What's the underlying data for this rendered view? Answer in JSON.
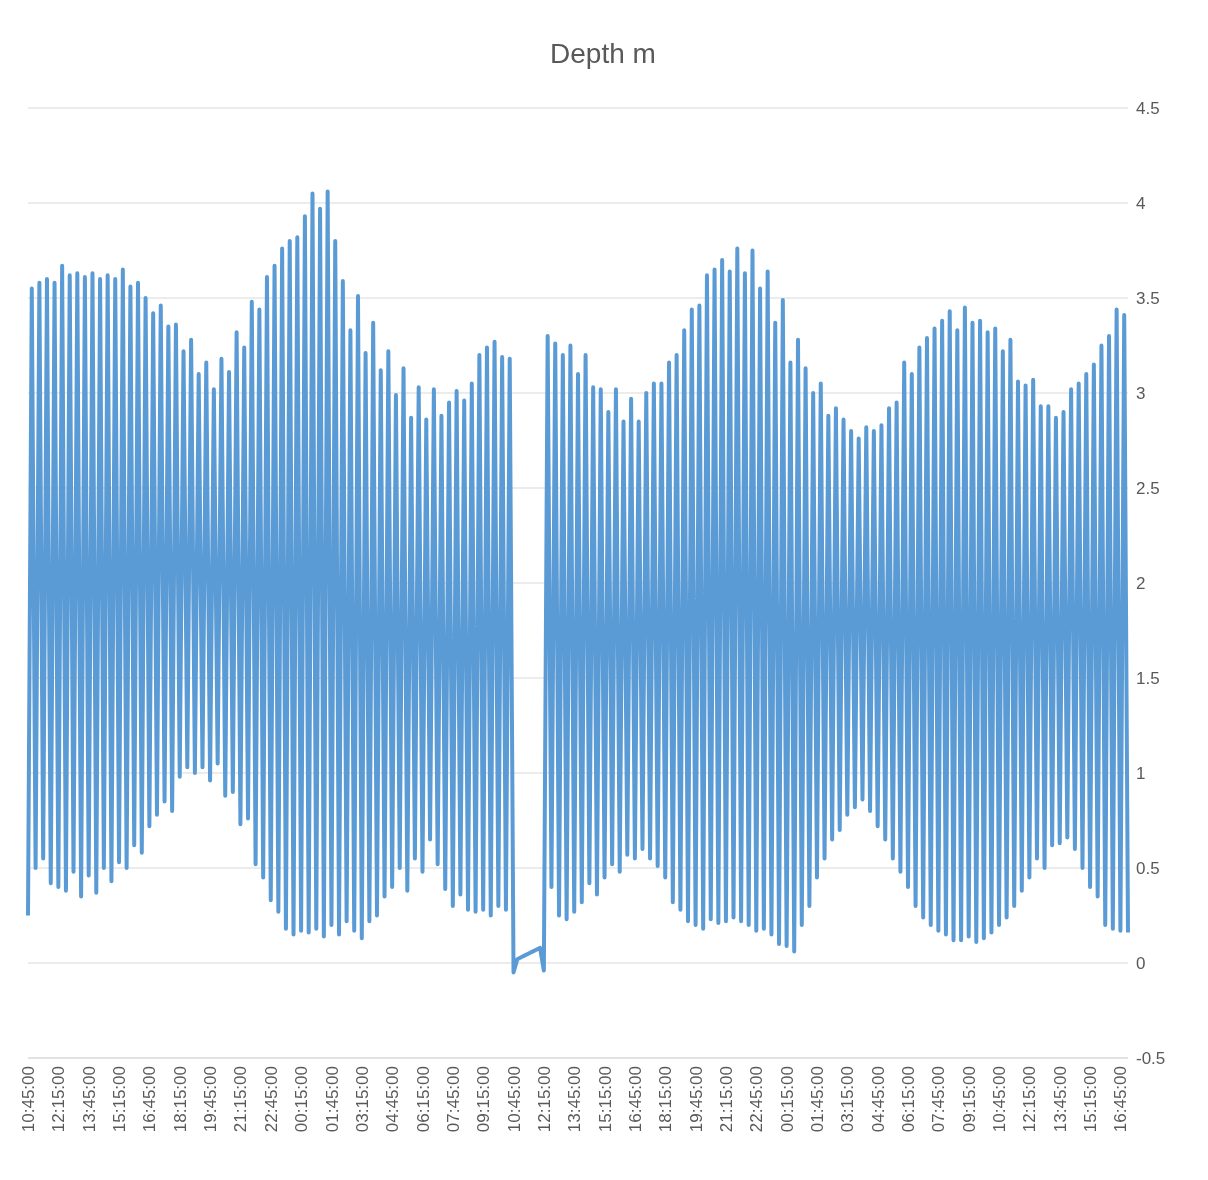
{
  "chart_data": {
    "type": "line",
    "title": "Depth m",
    "categories": [
      "10:45:00",
      null,
      null,
      null,
      null,
      null,
      null,
      null,
      "12:15:00",
      null,
      null,
      null,
      null,
      null,
      null,
      null,
      "13:45:00",
      null,
      null,
      null,
      null,
      null,
      null,
      null,
      "15:15:00",
      null,
      null,
      null,
      null,
      null,
      null,
      null,
      "16:45:00",
      null,
      null,
      null,
      null,
      null,
      null,
      null,
      "18:15:00",
      null,
      null,
      null,
      null,
      null,
      null,
      null,
      "19:45:00",
      null,
      null,
      null,
      null,
      null,
      null,
      null,
      "21:15:00",
      null,
      null,
      null,
      null,
      null,
      null,
      null,
      "22:45:00",
      null,
      null,
      null,
      null,
      null,
      null,
      null,
      "00:15:00",
      null,
      null,
      null,
      null,
      null,
      null,
      null,
      "01:45:00",
      null,
      null,
      null,
      null,
      null,
      null,
      null,
      "03:15:00",
      null,
      null,
      null,
      null,
      null,
      null,
      null,
      "04:45:00",
      null,
      null,
      null,
      null,
      null,
      null,
      null,
      "06:15:00",
      null,
      null,
      null,
      null,
      null,
      null,
      null,
      "07:45:00",
      null,
      null,
      null,
      null,
      null,
      null,
      null,
      "09:15:00",
      null,
      null,
      null,
      null,
      null,
      null,
      null,
      "10:45:00",
      null,
      null,
      null,
      null,
      null,
      null,
      null,
      "12:15:00",
      null,
      null,
      null,
      null,
      null,
      null,
      null,
      "13:45:00",
      null,
      null,
      null,
      null,
      null,
      null,
      null,
      "15:15:00",
      null,
      null,
      null,
      null,
      null,
      null,
      null,
      "16:45:00",
      null,
      null,
      null,
      null,
      null,
      null,
      null,
      "18:15:00",
      null,
      null,
      null,
      null,
      null,
      null,
      null,
      "19:45:00",
      null,
      null,
      null,
      null,
      null,
      null,
      null,
      "21:15:00",
      null,
      null,
      null,
      null,
      null,
      null,
      null,
      "22:45:00",
      null,
      null,
      null,
      null,
      null,
      null,
      null,
      "00:15:00",
      null,
      null,
      null,
      null,
      null,
      null,
      null,
      "01:45:00",
      null,
      null,
      null,
      null,
      null,
      null,
      null,
      "03:15:00",
      null,
      null,
      null,
      null,
      null,
      null,
      null,
      "04:45:00",
      null,
      null,
      null,
      null,
      null,
      null,
      null,
      "06:15:00",
      null,
      null,
      null,
      null,
      null,
      null,
      null,
      "07:45:00",
      null,
      null,
      null,
      null,
      null,
      null,
      null,
      "09:15:00",
      null,
      null,
      null,
      null,
      null,
      null,
      null,
      "10:45:00",
      null,
      null,
      null,
      null,
      null,
      null,
      null,
      "12:15:00",
      null,
      null,
      null,
      null,
      null,
      null,
      null,
      "13:45:00",
      null,
      null,
      null,
      null,
      null,
      null,
      null,
      "15:15:00",
      null,
      null,
      null,
      null,
      null,
      null,
      null,
      "16:45:00",
      null,
      null
    ],
    "series": [
      {
        "color": "#5b9bd5",
        "values": [
          0.25,
          3.55,
          0.5,
          3.58,
          0.55,
          3.6,
          0.42,
          3.58,
          0.4,
          3.67,
          0.38,
          3.62,
          0.48,
          3.63,
          0.35,
          3.61,
          0.46,
          3.63,
          0.37,
          3.6,
          0.5,
          3.62,
          0.43,
          3.6,
          0.53,
          3.65,
          0.5,
          3.56,
          0.62,
          3.58,
          0.58,
          3.5,
          0.72,
          3.42,
          0.78,
          3.46,
          0.85,
          3.35,
          0.8,
          3.36,
          0.98,
          3.22,
          1.03,
          3.28,
          1.0,
          3.1,
          1.03,
          3.16,
          0.96,
          3.02,
          1.05,
          3.18,
          0.88,
          3.11,
          0.9,
          3.32,
          0.73,
          3.24,
          0.76,
          3.48,
          0.52,
          3.44,
          0.45,
          3.61,
          0.33,
          3.67,
          0.27,
          3.76,
          0.18,
          3.8,
          0.15,
          3.82,
          0.17,
          3.93,
          0.16,
          4.05,
          0.18,
          3.97,
          0.14,
          4.06,
          0.2,
          3.8,
          0.15,
          3.59,
          0.22,
          3.33,
          0.17,
          3.51,
          0.13,
          3.21,
          0.22,
          3.37,
          0.25,
          3.12,
          0.35,
          3.22,
          0.4,
          2.99,
          0.5,
          3.13,
          0.38,
          2.87,
          0.55,
          3.03,
          0.48,
          2.86,
          0.65,
          3.02,
          0.52,
          2.88,
          0.39,
          2.95,
          0.3,
          3.01,
          0.36,
          2.96,
          0.28,
          3.05,
          0.27,
          3.2,
          0.28,
          3.24,
          0.25,
          3.27,
          0.3,
          3.19,
          0.28,
          3.18,
          -0.05,
          0.02,
          0.03,
          0.04,
          0.05,
          0.06,
          0.07,
          0.08,
          -0.04,
          3.3,
          0.4,
          3.26,
          0.25,
          3.2,
          0.23,
          3.25,
          0.27,
          3.1,
          0.32,
          3.2,
          0.42,
          3.03,
          0.36,
          3.02,
          0.45,
          2.9,
          0.52,
          3.02,
          0.48,
          2.85,
          0.57,
          2.97,
          0.55,
          2.85,
          0.6,
          3.0,
          0.55,
          3.05,
          0.51,
          3.05,
          0.45,
          3.16,
          0.32,
          3.2,
          0.28,
          3.33,
          0.22,
          3.44,
          0.2,
          3.46,
          0.18,
          3.62,
          0.23,
          3.65,
          0.21,
          3.7,
          0.22,
          3.64,
          0.24,
          3.76,
          0.22,
          3.63,
          0.2,
          3.75,
          0.17,
          3.55,
          0.18,
          3.64,
          0.15,
          3.37,
          0.1,
          3.49,
          0.09,
          3.16,
          0.06,
          3.28,
          0.2,
          3.13,
          0.3,
          3.0,
          0.45,
          3.05,
          0.55,
          2.88,
          0.65,
          2.92,
          0.7,
          2.86,
          0.78,
          2.8,
          0.82,
          2.76,
          0.86,
          2.82,
          0.8,
          2.8,
          0.72,
          2.83,
          0.65,
          2.92,
          0.55,
          2.95,
          0.48,
          3.16,
          0.4,
          3.1,
          0.3,
          3.24,
          0.24,
          3.29,
          0.2,
          3.34,
          0.17,
          3.38,
          0.15,
          3.43,
          0.12,
          3.33,
          0.12,
          3.45,
          0.14,
          3.37,
          0.11,
          3.38,
          0.13,
          3.32,
          0.16,
          3.34,
          0.2,
          3.22,
          0.24,
          3.28,
          0.3,
          3.06,
          0.38,
          3.04,
          0.45,
          3.07,
          0.55,
          2.93,
          0.5,
          2.93,
          0.62,
          2.87,
          0.63,
          2.9,
          0.66,
          3.02,
          0.6,
          3.05,
          0.5,
          3.1,
          0.4,
          3.15,
          0.35,
          3.25,
          0.2,
          3.3,
          0.18,
          3.44,
          0.17,
          3.41,
          0.16
        ]
      }
    ],
    "ylim": [
      -0.5,
      4.5
    ],
    "yticks": [
      -0.5,
      0,
      0.5,
      1,
      1.5,
      2,
      2.5,
      3,
      3.5,
      4,
      4.5
    ],
    "grid": "y"
  }
}
